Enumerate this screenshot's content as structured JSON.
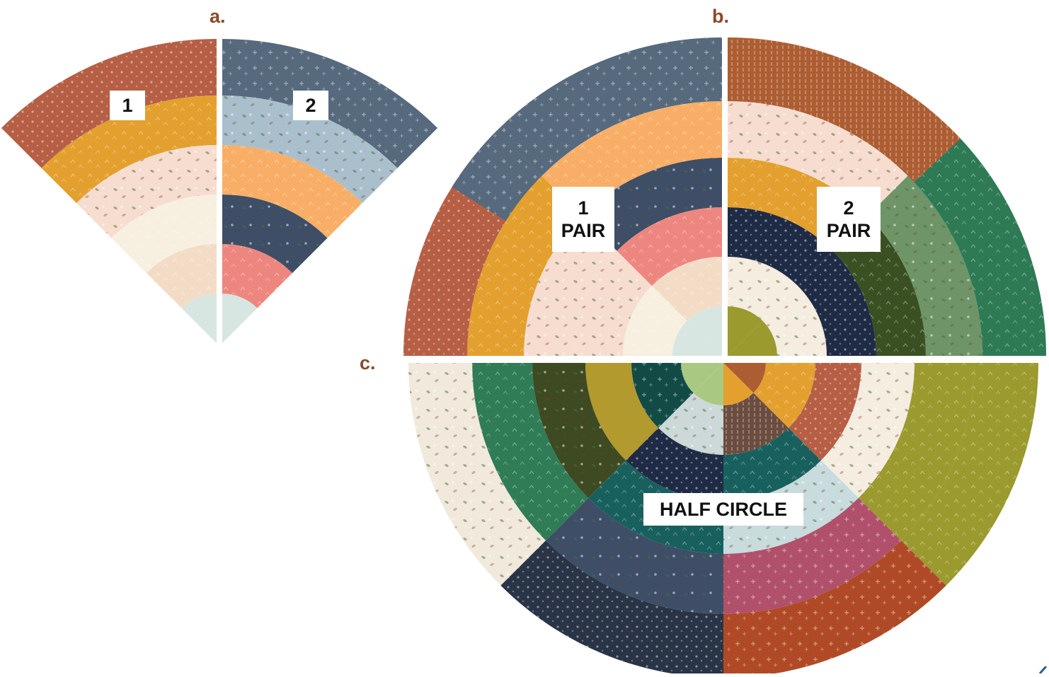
{
  "steps": {
    "a": "a.",
    "b": "b.",
    "c": "c."
  },
  "labels": {
    "wedge1": "1",
    "wedge2": "2",
    "pair1_line1": "1",
    "pair1_line2": "PAIR",
    "pair2_line1": "2",
    "pair2_line2": "PAIR",
    "half_circle": "HALF CIRCLE"
  },
  "fabric_colors": {
    "rust_floral": "#b65f45",
    "mustard": "#e3a02e",
    "blush_moth": "#f6ddd0",
    "cream": "#f7efdf",
    "peach_light": "#f3dcc6",
    "mint": "#d7e6e0",
    "slate_blue": "#56697d",
    "dusty_blue": "#a9bfcc",
    "orange_peach": "#f8ae66",
    "navy_moth": "#3d4e66",
    "coral": "#ee8680",
    "copper": "#ad5d32",
    "pink_stripe": "#f2a894",
    "forest_green": "#2d7a55",
    "sage_floral": "#6e9467",
    "dark_olive": "#3b5022",
    "navy_night": "#1f2b45",
    "strawberry_cream": "#f4ede0",
    "olive": "#9a9a2e",
    "charcoal_navy": "#2a3447",
    "teal": "#18605e",
    "dark_teal": "#124a46",
    "light_green": "#a9c982",
    "pale_sage": "#ccd9d8",
    "mustard_olive": "#b39a2e",
    "moth_olive": "#3e4a22",
    "green": "#2f7c56",
    "strawberry": "#f1e9dc",
    "rust_brown": "#b04a26",
    "mauve": "#b0506a",
    "light_blue_grey": "#c8dbdd",
    "brown_stripe": "#6b4d40",
    "cream_light": "#f4ede0"
  },
  "accent": "#8a4a2a"
}
